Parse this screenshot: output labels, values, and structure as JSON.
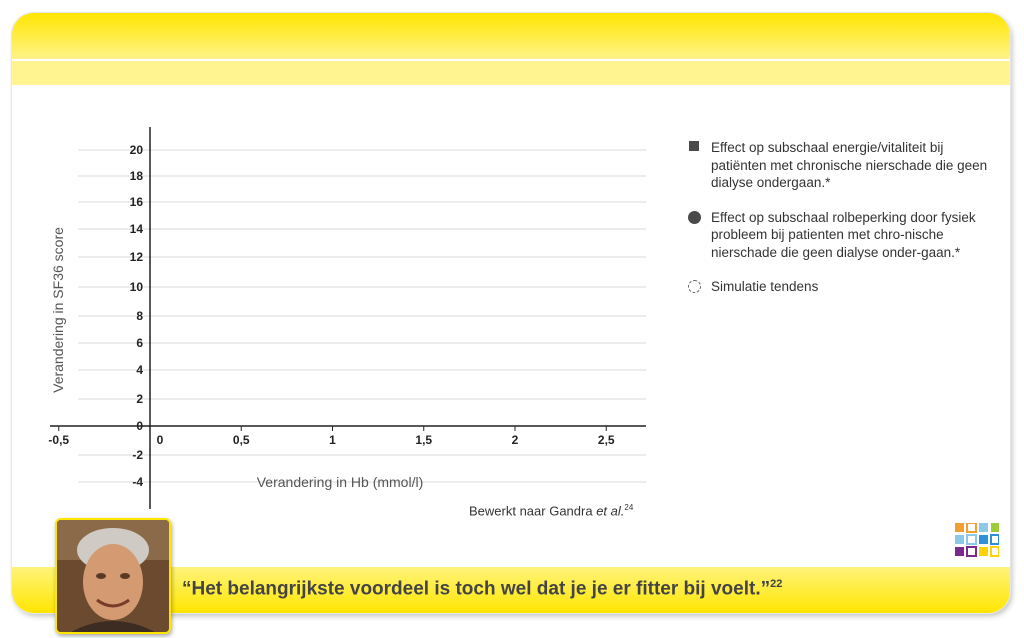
{
  "chart_data": {
    "type": "scatter",
    "title": "",
    "xlabel": "Verandering in Hb (mmol/l)",
    "ylabel": "Verandering in SF36 score",
    "x_ticks": [
      "-0,5",
      "0",
      "0,5",
      "1",
      "1,5",
      "2",
      "2,5"
    ],
    "x_tick_values": [
      -0.5,
      0,
      0.5,
      1,
      1.5,
      2,
      2.5
    ],
    "y_ticks": [
      "20",
      "18",
      "16",
      "14",
      "12",
      "10",
      "8",
      "6",
      "4",
      "2",
      "0",
      "-2",
      "-4"
    ],
    "y_tick_values": [
      20,
      18,
      16,
      14,
      12,
      10,
      8,
      6,
      4,
      2,
      0,
      -2,
      -4
    ],
    "xlim": [
      -0.5,
      2.7
    ],
    "ylim": [
      -5.5,
      21.5
    ],
    "grid": true,
    "legend_position": "right",
    "series": []
  },
  "legend": {
    "items": [
      {
        "marker": "square",
        "text": "Effect op subschaal energie/vitaliteit bij patiënten met chronische nierschade die geen dialyse ondergaan.*"
      },
      {
        "marker": "circle",
        "text": "Effect op subschaal rolbeperking door fysiek probleem bij patienten met chro-nische nierschade die geen dialyse onder-gaan.*"
      },
      {
        "marker": "dashed-circle",
        "text": "Simulatie tendens"
      }
    ]
  },
  "source": {
    "text": "Bewerkt naar Gandra ",
    "italic": "et al.",
    "ref": "24"
  },
  "quote": {
    "text": "“Het belangrijkste voordeel is toch wel dat je je er fitter bij voelt.”",
    "ref": "22"
  },
  "colors": {
    "yellow": "#ffe600",
    "grid": "#d9d9d9",
    "axis": "#222222",
    "text": "#333333"
  },
  "icons": {
    "photo": "smiling-man-portrait",
    "logo": "colored-squares-logo"
  }
}
